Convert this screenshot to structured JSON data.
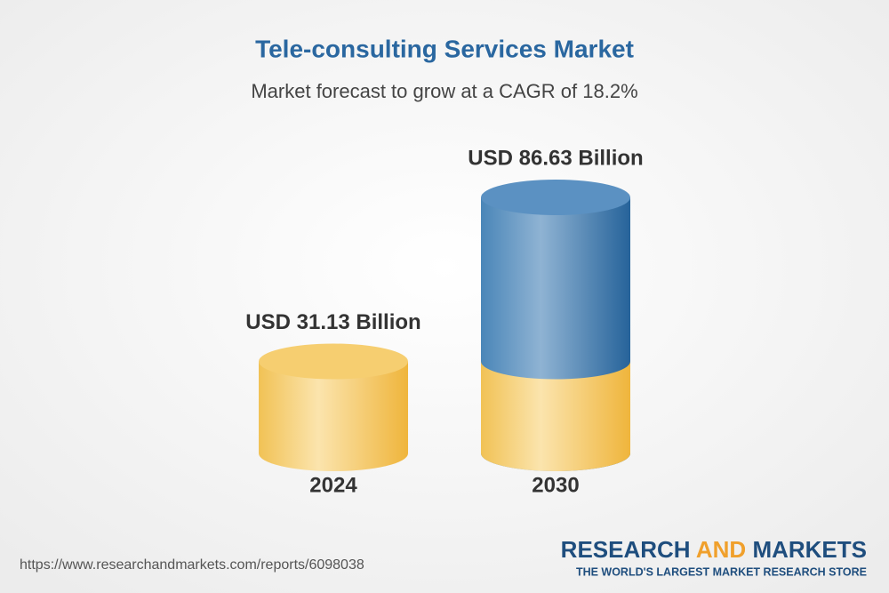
{
  "chart_data": {
    "type": "bar",
    "title": "Tele-consulting Services Market",
    "subtitle": "Market forecast to grow at a CAGR of 18.2%",
    "categories": [
      "2024",
      "2030"
    ],
    "values": [
      31.13,
      86.63
    ],
    "value_labels": [
      "USD 31.13 Billion",
      "USD 86.63 Billion"
    ]
  },
  "footer": {
    "url": "https://www.researchandmarkets.com/reports/6098038",
    "logo": [
      "RESEARCH",
      "AND",
      "MARKETS"
    ],
    "tagline": "THE WORLD'S LARGEST MARKET RESEARCH STORE"
  }
}
